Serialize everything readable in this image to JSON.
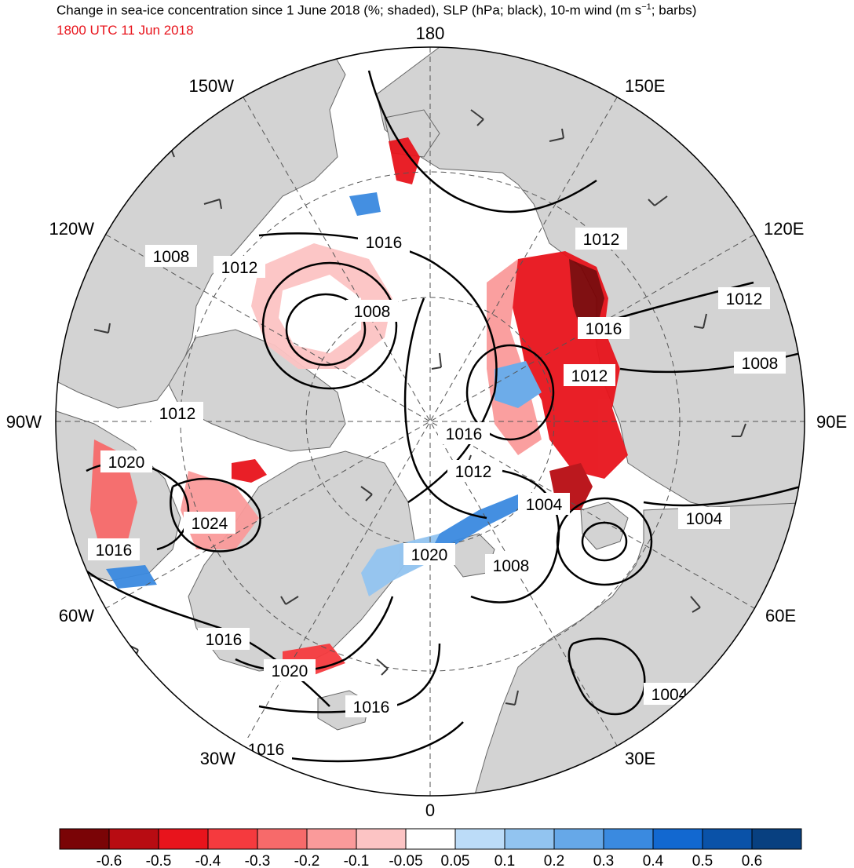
{
  "header": {
    "title": "Change in sea-ice concentration since 1 June 2018 (%; shaded), SLP (hPa; black), 10-m wind (m s",
    "title_sup": "−1",
    "title_end": "; barbs)",
    "valid_time": "1800 UTC 11 Jun 2018"
  },
  "colors": {
    "valid_time": "#e8141c",
    "land": "#d3d3d3",
    "ocean": "#ffffff",
    "contour": "#000000",
    "barb": "#3a3a3a"
  },
  "map": {
    "projection": "north-polar-stereographic",
    "longitude_labels": [
      {
        "text": "180",
        "lon": 180
      },
      {
        "text": "150E",
        "lon": 150
      },
      {
        "text": "120E",
        "lon": 120
      },
      {
        "text": "90E",
        "lon": 90
      },
      {
        "text": "60E",
        "lon": 60
      },
      {
        "text": "30E",
        "lon": 30
      },
      {
        "text": "0",
        "lon": 0
      },
      {
        "text": "30W",
        "lon": -30
      },
      {
        "text": "60W",
        "lon": -60
      },
      {
        "text": "90W",
        "lon": -90
      },
      {
        "text": "120W",
        "lon": -120
      },
      {
        "text": "150W",
        "lon": -150
      }
    ],
    "slp_contour_labels": [
      "1016",
      "1008",
      "1012",
      "1008",
      "1012",
      "1012",
      "1016",
      "1012",
      "1012",
      "1008",
      "1016",
      "1012",
      "1020",
      "1024",
      "1016",
      "1020",
      "1004",
      "1008",
      "1004",
      "1016",
      "1020",
      "1016",
      "1004",
      "1016"
    ]
  },
  "colorbar": {
    "colors": [
      "#7a0406",
      "#b80c12",
      "#e8141c",
      "#f53a3e",
      "#f76a6a",
      "#fa9a9a",
      "#fcc4c4",
      "#ffffff",
      "#bcdcf8",
      "#92c4f0",
      "#66a8e8",
      "#3a8ae0",
      "#1268d0",
      "#0a52a8",
      "#084080"
    ],
    "tick_labels": [
      "-0.6",
      "-0.5",
      "-0.4",
      "-0.3",
      "-0.2",
      "-0.1",
      "-0.05",
      "0.05",
      "0.1",
      "0.2",
      "0.3",
      "0.4",
      "0.5",
      "0.6"
    ]
  }
}
